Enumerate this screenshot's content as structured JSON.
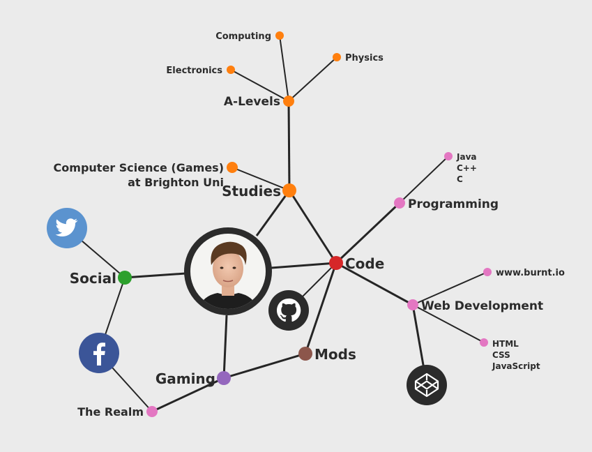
{
  "colors": {
    "background": "#ebebeb",
    "edge": "#252525",
    "studies": "#ff7f0e",
    "code": "#d62728",
    "social": "#2ca02c",
    "gaming": "#9467bd",
    "mods": "#8c564b",
    "leaf_pink": "#e377c2",
    "twitter": "#5b93cf",
    "facebook": "#3b5598",
    "dark_icon": "#2b2b2b"
  },
  "nodes": {
    "a_levels": "A-Levels",
    "computing": "Computing",
    "physics": "Physics",
    "electronics": "Electronics",
    "cs_line1": "Computer Science (Games)",
    "cs_line2": "at Brighton Uni",
    "studies": "Studies",
    "programming": "Programming",
    "langs": [
      "Java",
      "C++",
      "C"
    ],
    "code": "Code",
    "social": "Social",
    "www": "www.burnt.io",
    "web_dev": "Web Development",
    "web_langs": [
      "HTML",
      "CSS",
      "JavaScript"
    ],
    "mods": "Mods",
    "gaming": "Gaming",
    "realm": "The Realm"
  },
  "icons": {
    "twitter": "twitter-icon",
    "facebook": "facebook-icon",
    "github": "github-icon",
    "codepen": "codepen-icon",
    "avatar": "profile-photo"
  }
}
